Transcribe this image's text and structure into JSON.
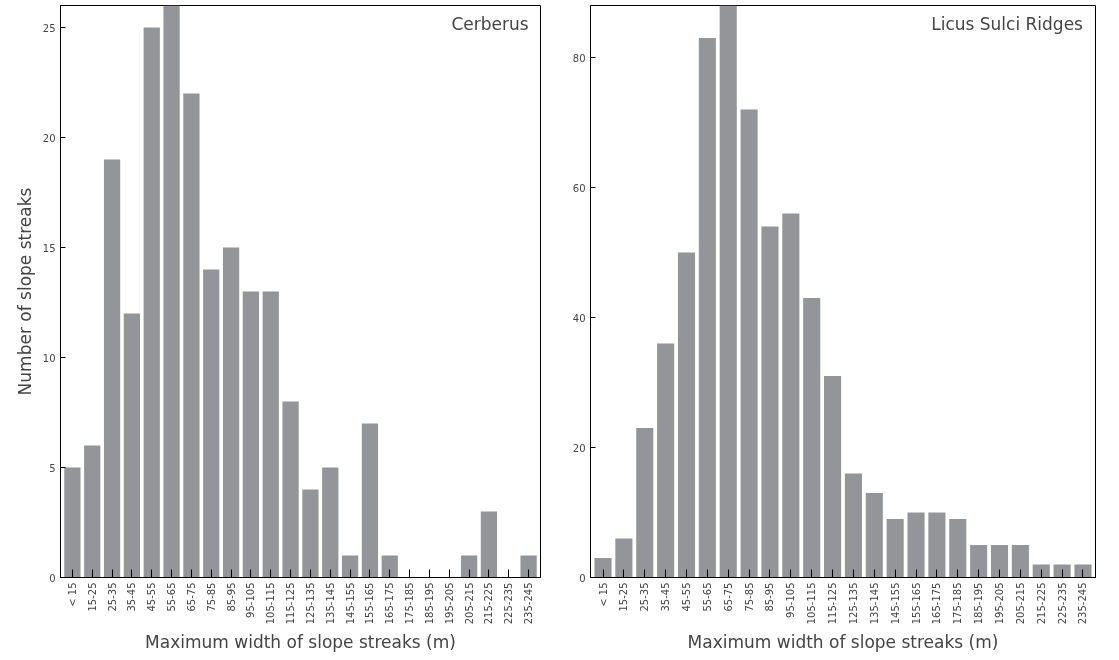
{
  "chart_data": [
    {
      "type": "bar",
      "title": "Cerberus",
      "xlabel": "Maximum width of slope streaks (m)",
      "ylabel": "Number of slope streaks",
      "categories": [
        "< 15",
        "15-25",
        "25-35",
        "35-45",
        "45-55",
        "55-65",
        "65-75",
        "75-85",
        "85-95",
        "95-105",
        "105-115",
        "115-125",
        "125-135",
        "135-145",
        "145-155",
        "155-165",
        "165-175",
        "175-185",
        "185-195",
        "195-205",
        "205-215",
        "215-225",
        "225-235",
        "235-245"
      ],
      "values": [
        5,
        6,
        19,
        12,
        25,
        26,
        22,
        14,
        15,
        13,
        13,
        8,
        4,
        5,
        1,
        7,
        1,
        0,
        0,
        0,
        1,
        3,
        0,
        1
      ],
      "color": "#939598",
      "ylim": [
        0,
        26
      ],
      "yticks": [
        0,
        5,
        10,
        15,
        20,
        25
      ],
      "grid": false
    },
    {
      "type": "bar",
      "title": "Licus Sulci Ridges",
      "xlabel": "Maximum width of slope streaks (m)",
      "categories": [
        "< 15",
        "15-25",
        "25-35",
        "35-45",
        "45-55",
        "55-65",
        "65-75",
        "75-85",
        "85-95",
        "95-105",
        "105-115",
        "115-125",
        "125-135",
        "135-145",
        "145-155",
        "155-165",
        "165-175",
        "175-185",
        "185-195",
        "195-205",
        "205-215",
        "215-225",
        "225-235",
        "235-245"
      ],
      "values": [
        3,
        6,
        23,
        36,
        50,
        83,
        88,
        72,
        54,
        56,
        43,
        31,
        16,
        13,
        9,
        10,
        10,
        9,
        5,
        5,
        5,
        2,
        2,
        2
      ],
      "color": "#939598",
      "ylim": [
        0,
        88
      ],
      "yticks": [
        0,
        20,
        40,
        60,
        80
      ],
      "grid": false
    }
  ]
}
